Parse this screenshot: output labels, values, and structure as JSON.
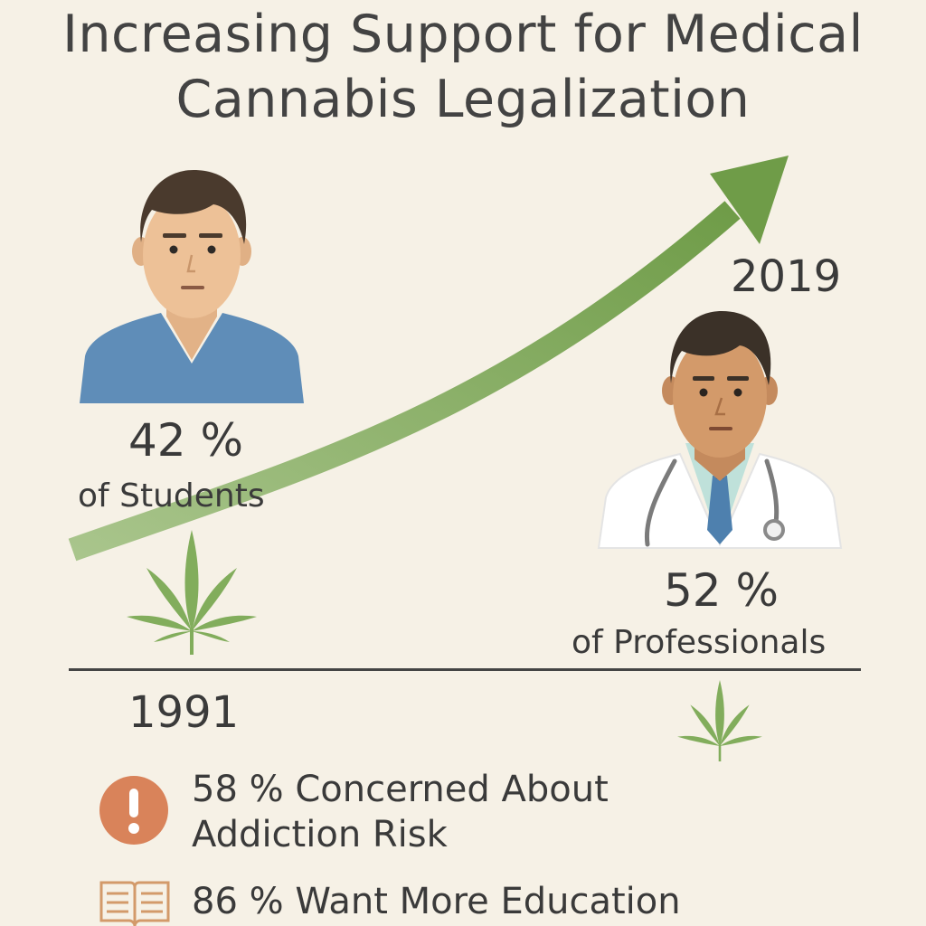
{
  "title": {
    "line1": "Increasing Support for Medical",
    "line2": "Cannabis Legalization"
  },
  "students": {
    "percent": "42 %",
    "label": "of Students"
  },
  "professionals": {
    "percent": "52 %",
    "label": "of Professionals"
  },
  "years": {
    "start": "1991",
    "end": "2019"
  },
  "stats": [
    {
      "icon": "alert-icon",
      "line1": "58 % Concerned About",
      "line2": "Addiction Risk"
    },
    {
      "icon": "book-icon",
      "line1": "86 % Want More Education"
    }
  ],
  "colors": {
    "background": "#f6f1e6",
    "arrow": "#7ea75a",
    "leaf": "#82ad5c",
    "alert": "#d9835a",
    "shirt": "#5f8db8",
    "tie": "#4e80ae"
  }
}
